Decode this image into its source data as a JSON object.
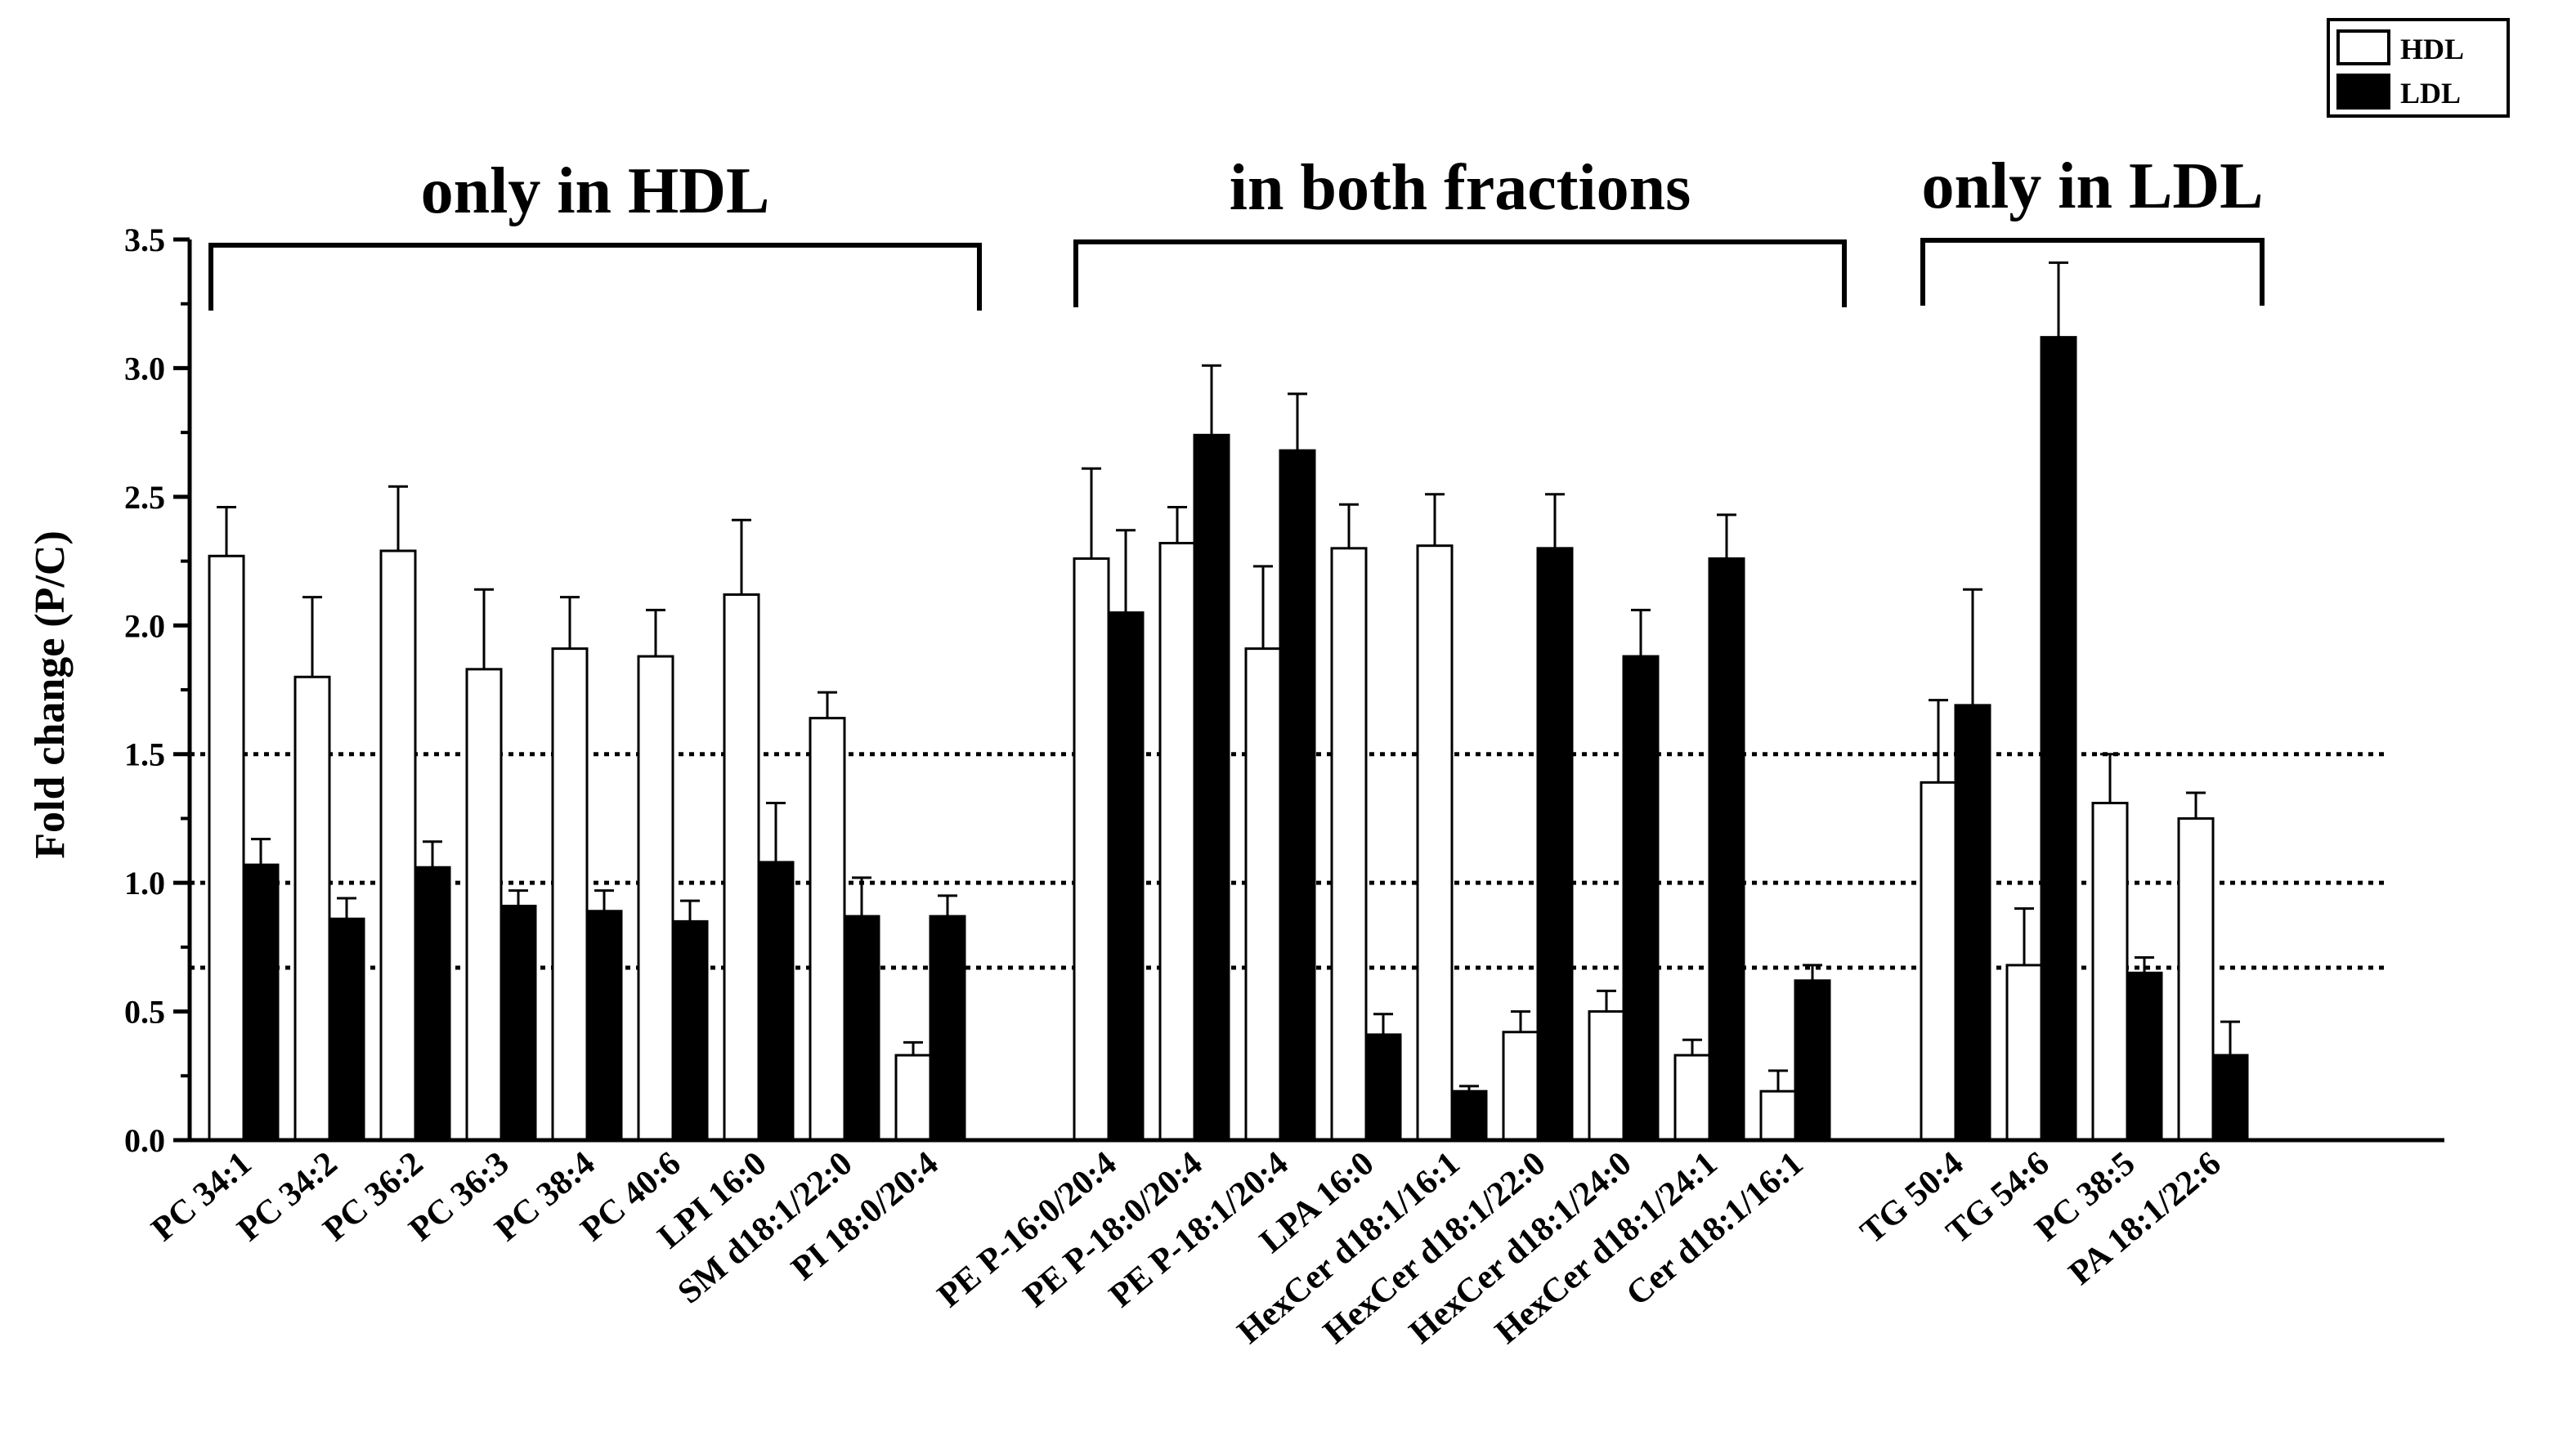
{
  "chart_data": {
    "type": "bar",
    "title": "",
    "xlabel": "",
    "ylabel": "Fold change (P/C)",
    "ylim": [
      0,
      3.5
    ],
    "yticks": [
      "0.0",
      "0.5",
      "1.0",
      "1.5",
      "2.0",
      "2.5",
      "3.0",
      "3.5"
    ],
    "reference_lines": [
      0.67,
      1.0,
      1.5
    ],
    "legend": [
      {
        "name": "HDL",
        "color": "#ffffff"
      },
      {
        "name": "LDL",
        "color": "#000000"
      }
    ],
    "groups": [
      {
        "title": "only in HDL",
        "categories": [
          "PC 34:1",
          "PC 34:2",
          "PC 36:2",
          "PC 36:3",
          "PC 38:4",
          "PC 40:6",
          "LPI 16:0",
          "SM d18:1/22:0",
          "PI 18:0/20:4"
        ]
      },
      {
        "title": "in both fractions",
        "categories": [
          "PE P-16:0/20:4",
          "PE P-18:0/20:4",
          "PE P-18:1/20:4",
          "LPA 16:0",
          "HexCer d18:1/16:1",
          "HexCer d18:1/22:0",
          "HexCer d18:1/24:0",
          "HexCer d18:1/24:1",
          "Cer d18:1/16:1"
        ]
      },
      {
        "title": "only in LDL",
        "categories": [
          "TG 50:4",
          "TG 54:6",
          "PC 38:5",
          "PA 18:1/22:6"
        ]
      }
    ],
    "series": [
      {
        "name": "HDL",
        "values": [
          2.27,
          1.8,
          2.29,
          1.83,
          1.91,
          1.88,
          2.12,
          1.64,
          0.33,
          2.26,
          2.32,
          1.91,
          2.3,
          2.31,
          0.42,
          0.5,
          0.33,
          0.19,
          1.39,
          0.68,
          1.31,
          1.25
        ],
        "errors": [
          0.19,
          0.31,
          0.25,
          0.31,
          0.2,
          0.18,
          0.29,
          0.1,
          0.05,
          0.35,
          0.14,
          0.32,
          0.17,
          0.2,
          0.08,
          0.08,
          0.06,
          0.08,
          0.32,
          0.22,
          0.19,
          0.1
        ]
      },
      {
        "name": "LDL",
        "values": [
          1.07,
          0.86,
          1.06,
          0.91,
          0.89,
          0.85,
          1.08,
          0.87,
          0.87,
          2.05,
          2.74,
          2.68,
          0.41,
          0.19,
          2.3,
          1.88,
          2.26,
          0.62,
          1.69,
          3.12,
          0.65,
          0.33
        ],
        "errors": [
          0.1,
          0.08,
          0.1,
          0.06,
          0.08,
          0.08,
          0.23,
          0.15,
          0.08,
          0.32,
          0.27,
          0.22,
          0.08,
          0.02,
          0.21,
          0.18,
          0.17,
          0.06,
          0.45,
          0.29,
          0.06,
          0.13
        ]
      }
    ]
  }
}
